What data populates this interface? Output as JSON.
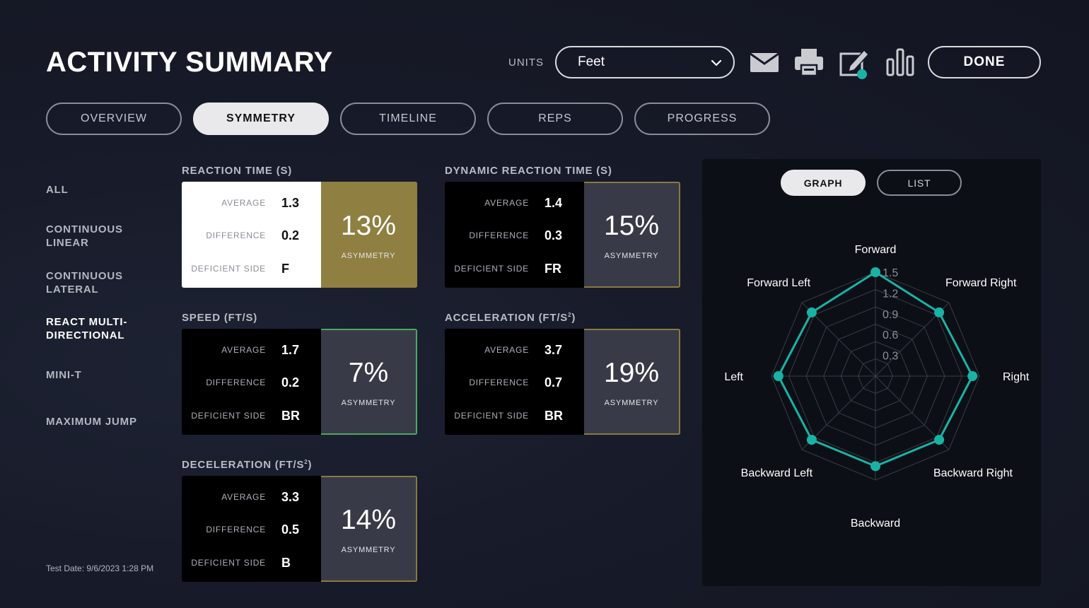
{
  "header": {
    "title": "ACTIVITY SUMMARY",
    "units_label": "UNITS",
    "units_value": "Feet",
    "done_label": "DONE",
    "tool_icons": [
      "envelope-icon",
      "printer-icon",
      "edit-note-icon",
      "bar-chart-icon"
    ],
    "edit_badge_color": "#19b3a6"
  },
  "tabs": [
    {
      "label": "OVERVIEW",
      "active": false
    },
    {
      "label": "SYMMETRY",
      "active": true
    },
    {
      "label": "TIMELINE",
      "active": false
    },
    {
      "label": "REPS",
      "active": false
    },
    {
      "label": "PROGRESS",
      "active": false
    }
  ],
  "sidenav": [
    {
      "label": "ALL",
      "active": false
    },
    {
      "label": "CONTINUOUS LINEAR",
      "active": false
    },
    {
      "label": "CONTINUOUS LATERAL",
      "active": false
    },
    {
      "label": "REACT MULTI-DIRECTIONAL",
      "active": true
    },
    {
      "label": "MINI-T",
      "active": false
    },
    {
      "label": "MAXIMUM JUMP",
      "active": false
    }
  ],
  "test_date": "Test Date: 9/6/2023 1:28 PM",
  "stat_labels": {
    "average": "AVERAGE",
    "difference": "DIFFERENCE",
    "deficient": "DEFICIENT SIDE",
    "asymmetry": "ASYMMETRY"
  },
  "metrics": [
    {
      "title": "REACTION TIME (S)",
      "average": "1.3",
      "difference": "0.2",
      "deficient_side": "F",
      "asymmetry": "13%",
      "highlight": "gold"
    },
    {
      "title": "DYNAMIC REACTION TIME (S)",
      "average": "1.4",
      "difference": "0.3",
      "deficient_side": "FR",
      "asymmetry": "15%",
      "highlight": "none"
    },
    {
      "title": "SPEED (FT/S)",
      "average": "1.7",
      "difference": "0.2",
      "deficient_side": "BR",
      "asymmetry": "7%",
      "highlight": "green"
    },
    {
      "title": "ACCELERATION (FT/S",
      "title_sup": "2",
      "title_end": ")",
      "average": "3.7",
      "difference": "0.7",
      "deficient_side": "BR",
      "asymmetry": "19%",
      "highlight": "none"
    },
    {
      "title": "DECELERATION (FT/S",
      "title_sup": "2",
      "title_end": ")",
      "average": "3.3",
      "difference": "0.5",
      "deficient_side": "B",
      "asymmetry": "14%",
      "highlight": "none"
    }
  ],
  "colors": {
    "gold": "#8f7f41",
    "green": "#4ea860",
    "teal": "#19b3a6",
    "border_gold": "#8a7a3f"
  },
  "graph_panel": {
    "buttons": [
      {
        "label": "GRAPH",
        "active": true
      },
      {
        "label": "LIST",
        "active": false
      }
    ]
  },
  "chart_data": {
    "type": "radar",
    "categories": [
      "Forward",
      "Forward Right",
      "Right",
      "Backward Right",
      "Backward",
      "Backward Left",
      "Left",
      "Forward Left"
    ],
    "series": [
      {
        "values": [
          1.5,
          1.3,
          1.4,
          1.3,
          1.3,
          1.3,
          1.4,
          1.3
        ]
      }
    ],
    "rlim": [
      0,
      1.5
    ],
    "ticks": [
      "0.3",
      "0.6",
      "0.9",
      "1.2",
      "1.5"
    ],
    "tick_values": [
      0.3,
      0.6,
      0.9,
      1.2,
      1.5
    ],
    "series_color": "#19b3a6",
    "grid": true
  }
}
